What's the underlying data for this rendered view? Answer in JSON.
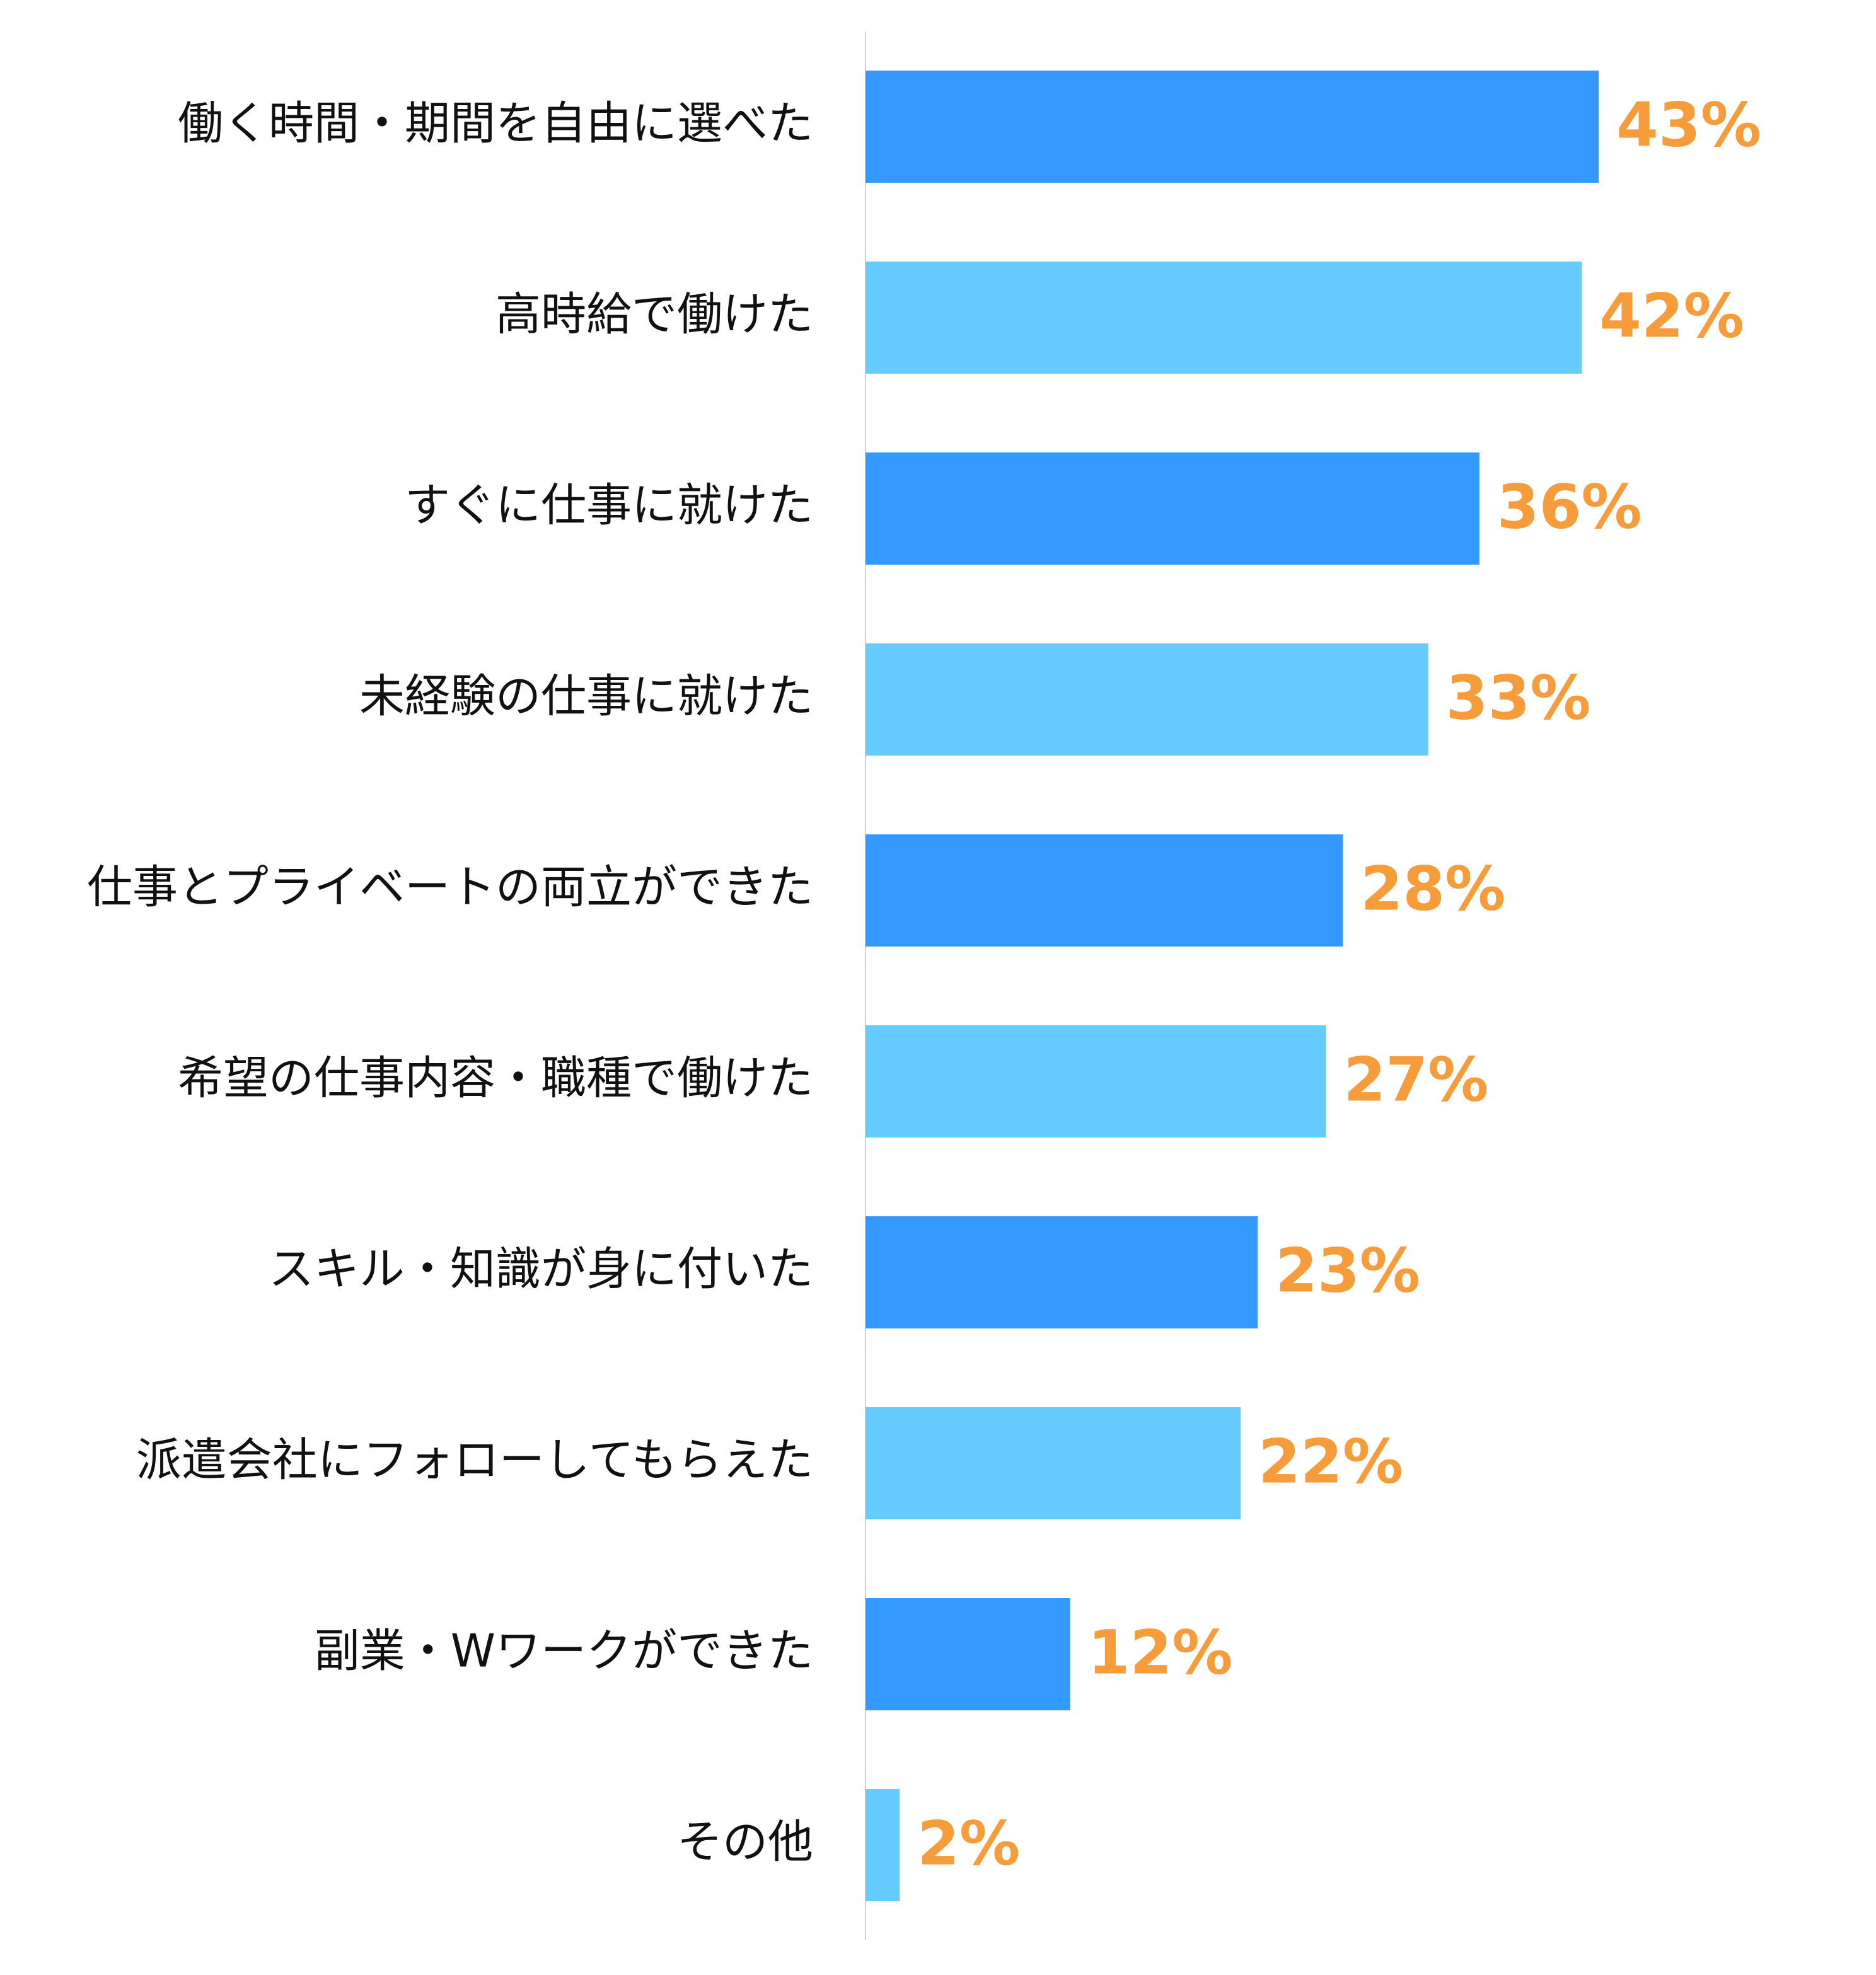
{
  "chart_data": {
    "type": "bar",
    "orientation": "horizontal",
    "categories": [
      "働く時間・期間を自由に選べた",
      "高時給で働けた",
      "すぐに仕事に就けた",
      "未経験の仕事に就けた",
      "仕事とプライベートの両立ができた",
      "希望の仕事内容・職種で働けた",
      "スキル・知識が身に付いた",
      "派遣会社にフォローしてもらえた",
      "副業・Wワークができた",
      "その他"
    ],
    "values": [
      43,
      42,
      36,
      33,
      28,
      27,
      23,
      22,
      12,
      2
    ],
    "value_labels": [
      "43%",
      "42%",
      "36%",
      "33%",
      "28%",
      "27%",
      "23%",
      "22%",
      "12%",
      "2%"
    ],
    "unit": "%",
    "xlim": [
      0,
      50
    ],
    "grid": false,
    "legend": "none",
    "colors": {
      "bar_dark": "#3399ff",
      "bar_light": "#66ccff",
      "value_label": "#f79c3b",
      "axis_line": "#d0d0d0",
      "category_text": "#111111"
    }
  }
}
